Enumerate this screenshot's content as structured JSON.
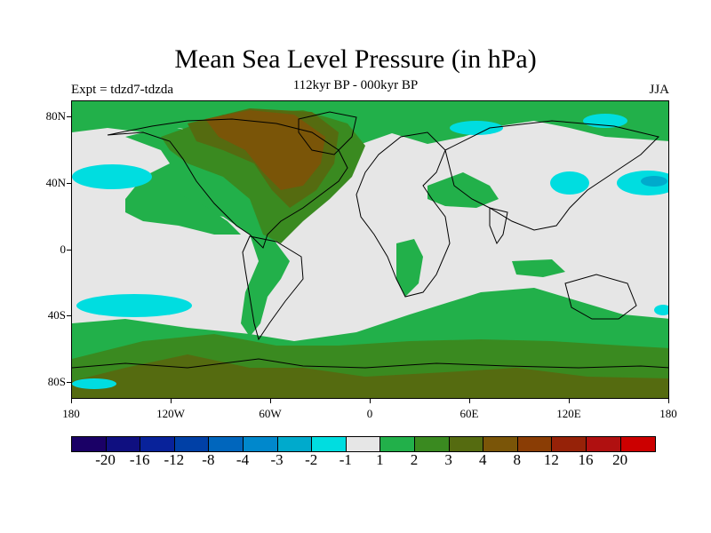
{
  "title": "Mean Sea Level Pressure (in hPa)",
  "subtitle": "112kyr BP - 000kyr BP",
  "experiment": "Expt = tdzd7-tdzda",
  "season": "JJA",
  "lat_labels": [
    "80N",
    "40N",
    "0",
    "40S",
    "80S"
  ],
  "lon_labels": [
    "180",
    "120W",
    "60W",
    "0",
    "60E",
    "120E",
    "180"
  ],
  "colorbar": {
    "colors": [
      "#1a0066",
      "#0f0f80",
      "#08229a",
      "#0040a6",
      "#0066bd",
      "#0088cc",
      "#00aacc",
      "#00dde0",
      "#e6e6e6",
      "#22b04a",
      "#3a8a20",
      "#556b10",
      "#7a5508",
      "#8a3d05",
      "#962208",
      "#b01010",
      "#cc0000"
    ],
    "labels": [
      "-20",
      "-16",
      "-12",
      "-8",
      "-4",
      "-3",
      "-2",
      "-1",
      "1",
      "2",
      "3",
      "4",
      "8",
      "12",
      "16",
      "20"
    ]
  },
  "colors": {
    "neutral": "#e6e6e6",
    "green": "#22b04a",
    "dark_green": "#3a8a20",
    "olive": "#556b10",
    "brown": "#7a5508",
    "cyan": "#00dde0",
    "cyan_dark": "#00aacc"
  }
}
